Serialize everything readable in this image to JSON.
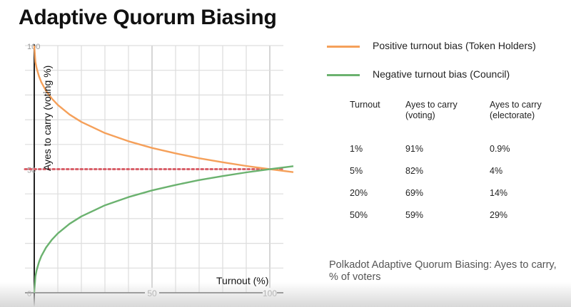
{
  "title": "Adaptive Quorum Biasing",
  "legend": [
    {
      "label": "Positive turnout bias (Token Holders)",
      "color": "#f5a05a"
    },
    {
      "label": "Negative turnout bias (Council)",
      "color": "#6bb26f"
    }
  ],
  "table": {
    "headers": [
      "Turnout",
      "Ayes to carry\n(voting)",
      "Ayes to carry\n(electorate)"
    ],
    "rows": [
      [
        "1%",
        "91%",
        "0.9%"
      ],
      [
        "5%",
        "82%",
        "4%"
      ],
      [
        "20%",
        "69%",
        "14%"
      ],
      [
        "50%",
        "59%",
        "29%"
      ]
    ]
  },
  "caption": "Polkadot Adaptive Quorum Biasing: Ayes to carry, % of voters",
  "chart_data": {
    "type": "line",
    "xlabel": "Turnout (%)",
    "ylabel": "Ayes to carry (voting %)",
    "xlim": [
      0,
      110
    ],
    "ylim": [
      0,
      100
    ],
    "x_ticks": [
      "50",
      "100"
    ],
    "y_ticks": [
      "0",
      "50",
      "100"
    ],
    "grid": true,
    "reference_line": {
      "y": 50,
      "style": "dotted",
      "color": "#d9606a"
    },
    "x": [
      0,
      0.5,
      1,
      2,
      3,
      5,
      7.5,
      10,
      15,
      20,
      30,
      40,
      50,
      60,
      70,
      80,
      90,
      100,
      110
    ],
    "series": [
      {
        "name": "Positive turnout bias (Token Holders)",
        "color": "#f5a05a",
        "values": [
          100,
          93.4,
          90.9,
          87.6,
          85.2,
          81.7,
          78.5,
          76.0,
          72.1,
          69.1,
          64.6,
          61.3,
          58.6,
          56.4,
          54.4,
          52.8,
          51.3,
          50.0,
          48.8
        ]
      },
      {
        "name": "Negative turnout bias (Council)",
        "color": "#6bb26f",
        "values": [
          0,
          6.6,
          9.1,
          12.4,
          14.8,
          18.3,
          21.5,
          24.0,
          27.9,
          30.9,
          35.4,
          38.7,
          41.4,
          43.6,
          45.6,
          47.2,
          48.7,
          50.0,
          51.2
        ]
      }
    ]
  }
}
